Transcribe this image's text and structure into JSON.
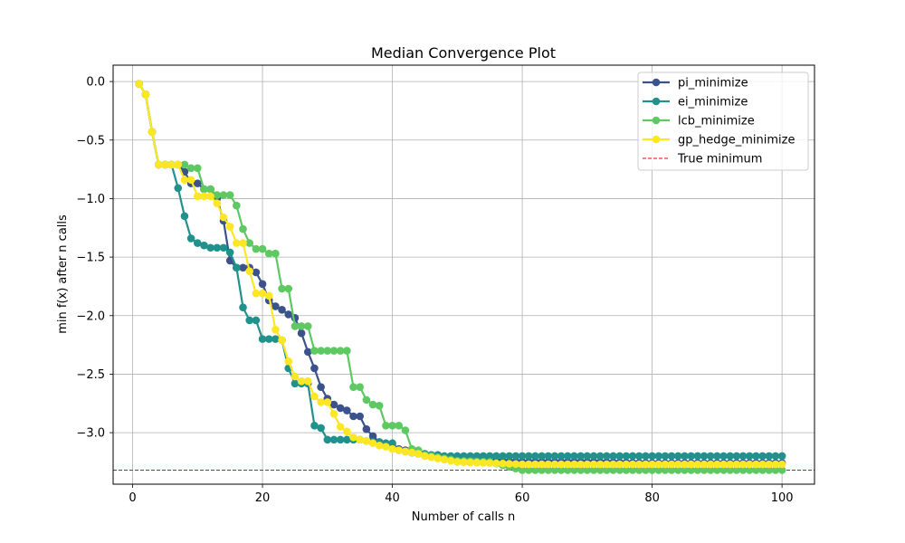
{
  "chart_data": {
    "type": "line",
    "title": "Median Convergence Plot",
    "xlabel": "Number of calls n",
    "ylabel": "min f(x) after n calls",
    "xlim": [
      -3,
      105
    ],
    "ylim": [
      -3.44,
      0.14
    ],
    "x_ticks": [
      0,
      20,
      40,
      60,
      80,
      100
    ],
    "y_ticks": [
      0.0,
      -0.5,
      -1.0,
      -1.5,
      -2.0,
      -2.5,
      -3.0
    ],
    "x_tick_labels": [
      "0",
      "20",
      "40",
      "60",
      "80",
      "100"
    ],
    "y_tick_labels": [
      "0.0",
      "−0.5",
      "−1.0",
      "−1.5",
      "−2.0",
      "−2.5",
      "−3.0"
    ],
    "grid": true,
    "legend_position": "top-right",
    "true_minimum": {
      "name": "True minimum",
      "value": -3.32,
      "color": "#ff0000",
      "style": "dashed"
    },
    "series": [
      {
        "name": "pi_minimize",
        "color": "#3b528b",
        "points": [
          [
            1,
            -0.02
          ],
          [
            2,
            -0.11
          ],
          [
            3,
            -0.43
          ],
          [
            4,
            -0.71
          ],
          [
            5,
            -0.71
          ],
          [
            6,
            -0.71
          ],
          [
            7,
            -0.71
          ],
          [
            8,
            -0.77
          ],
          [
            9,
            -0.87
          ],
          [
            10,
            -0.87
          ],
          [
            11,
            -0.92
          ],
          [
            12,
            -0.92
          ],
          [
            13,
            -1.0
          ],
          [
            14,
            -1.19
          ],
          [
            15,
            -1.53
          ],
          [
            16,
            -1.59
          ],
          [
            17,
            -1.59
          ],
          [
            18,
            -1.59
          ],
          [
            19,
            -1.63
          ],
          [
            20,
            -1.73
          ],
          [
            21,
            -1.87
          ],
          [
            22,
            -1.92
          ],
          [
            23,
            -1.95
          ],
          [
            24,
            -1.99
          ],
          [
            25,
            -2.02
          ],
          [
            26,
            -2.15
          ],
          [
            27,
            -2.31
          ],
          [
            28,
            -2.45
          ],
          [
            29,
            -2.61
          ],
          [
            30,
            -2.71
          ],
          [
            31,
            -2.76
          ],
          [
            32,
            -2.79
          ],
          [
            33,
            -2.81
          ],
          [
            34,
            -2.86
          ],
          [
            35,
            -2.86
          ],
          [
            36,
            -2.97
          ],
          [
            37,
            -3.03
          ],
          [
            38,
            -3.08
          ],
          [
            39,
            -3.1
          ],
          [
            40,
            -3.11
          ],
          [
            41,
            -3.14
          ],
          [
            42,
            -3.15
          ],
          [
            43,
            -3.17
          ],
          [
            44,
            -3.18
          ],
          [
            45,
            -3.19
          ],
          [
            46,
            -3.2
          ],
          [
            47,
            -3.21
          ],
          [
            48,
            -3.22
          ],
          [
            49,
            -3.23
          ],
          [
            50,
            -3.23
          ],
          [
            52,
            -3.24
          ],
          [
            55,
            -3.24
          ],
          [
            60,
            -3.25
          ],
          [
            70,
            -3.25
          ],
          [
            80,
            -3.26
          ],
          [
            90,
            -3.26
          ],
          [
            100,
            -3.26
          ]
        ]
      },
      {
        "name": "ei_minimize",
        "color": "#21918c",
        "points": [
          [
            1,
            -0.02
          ],
          [
            2,
            -0.11
          ],
          [
            3,
            -0.43
          ],
          [
            4,
            -0.71
          ],
          [
            5,
            -0.71
          ],
          [
            6,
            -0.71
          ],
          [
            7,
            -0.91
          ],
          [
            8,
            -1.15
          ],
          [
            9,
            -1.34
          ],
          [
            10,
            -1.38
          ],
          [
            11,
            -1.4
          ],
          [
            12,
            -1.42
          ],
          [
            13,
            -1.42
          ],
          [
            14,
            -1.42
          ],
          [
            15,
            -1.46
          ],
          [
            16,
            -1.59
          ],
          [
            17,
            -1.93
          ],
          [
            18,
            -2.04
          ],
          [
            19,
            -2.04
          ],
          [
            20,
            -2.2
          ],
          [
            21,
            -2.2
          ],
          [
            22,
            -2.2
          ],
          [
            23,
            -2.21
          ],
          [
            24,
            -2.45
          ],
          [
            25,
            -2.58
          ],
          [
            26,
            -2.58
          ],
          [
            27,
            -2.58
          ],
          [
            28,
            -2.94
          ],
          [
            29,
            -2.96
          ],
          [
            30,
            -3.06
          ],
          [
            31,
            -3.06
          ],
          [
            32,
            -3.06
          ],
          [
            33,
            -3.06
          ],
          [
            34,
            -3.06
          ],
          [
            35,
            -3.06
          ],
          [
            36,
            -3.07
          ],
          [
            37,
            -3.08
          ],
          [
            38,
            -3.08
          ],
          [
            39,
            -3.09
          ],
          [
            40,
            -3.09
          ],
          [
            41,
            -3.15
          ],
          [
            42,
            -3.16
          ],
          [
            43,
            -3.17
          ],
          [
            44,
            -3.18
          ],
          [
            45,
            -3.18
          ],
          [
            46,
            -3.19
          ],
          [
            47,
            -3.19
          ],
          [
            48,
            -3.2
          ],
          [
            50,
            -3.2
          ],
          [
            60,
            -3.2
          ],
          [
            70,
            -3.2
          ],
          [
            80,
            -3.2
          ],
          [
            90,
            -3.2
          ],
          [
            100,
            -3.2
          ]
        ]
      },
      {
        "name": "lcb_minimize",
        "color": "#5ec962",
        "points": [
          [
            1,
            -0.02
          ],
          [
            2,
            -0.11
          ],
          [
            3,
            -0.43
          ],
          [
            4,
            -0.71
          ],
          [
            5,
            -0.71
          ],
          [
            6,
            -0.71
          ],
          [
            7,
            -0.71
          ],
          [
            8,
            -0.71
          ],
          [
            9,
            -0.74
          ],
          [
            10,
            -0.74
          ],
          [
            11,
            -0.92
          ],
          [
            12,
            -0.92
          ],
          [
            13,
            -0.97
          ],
          [
            14,
            -0.97
          ],
          [
            15,
            -0.97
          ],
          [
            16,
            -1.06
          ],
          [
            17,
            -1.26
          ],
          [
            18,
            -1.38
          ],
          [
            19,
            -1.43
          ],
          [
            20,
            -1.43
          ],
          [
            21,
            -1.47
          ],
          [
            22,
            -1.47
          ],
          [
            23,
            -1.77
          ],
          [
            24,
            -1.77
          ],
          [
            25,
            -2.09
          ],
          [
            26,
            -2.09
          ],
          [
            27,
            -2.09
          ],
          [
            28,
            -2.3
          ],
          [
            29,
            -2.3
          ],
          [
            30,
            -2.3
          ],
          [
            31,
            -2.3
          ],
          [
            32,
            -2.3
          ],
          [
            33,
            -2.3
          ],
          [
            34,
            -2.61
          ],
          [
            35,
            -2.61
          ],
          [
            36,
            -2.72
          ],
          [
            37,
            -2.76
          ],
          [
            38,
            -2.77
          ],
          [
            39,
            -2.94
          ],
          [
            40,
            -2.94
          ],
          [
            41,
            -2.94
          ],
          [
            42,
            -2.98
          ],
          [
            43,
            -3.14
          ],
          [
            44,
            -3.15
          ],
          [
            45,
            -3.19
          ],
          [
            46,
            -3.2
          ],
          [
            47,
            -3.21
          ],
          [
            48,
            -3.22
          ],
          [
            49,
            -3.23
          ],
          [
            50,
            -3.24
          ],
          [
            55,
            -3.25
          ],
          [
            60,
            -3.32
          ],
          [
            70,
            -3.32
          ],
          [
            80,
            -3.32
          ],
          [
            90,
            -3.32
          ],
          [
            100,
            -3.32
          ]
        ]
      },
      {
        "name": "gp_hedge_minimize",
        "color": "#fde725",
        "points": [
          [
            1,
            -0.02
          ],
          [
            2,
            -0.11
          ],
          [
            3,
            -0.43
          ],
          [
            4,
            -0.71
          ],
          [
            5,
            -0.71
          ],
          [
            6,
            -0.71
          ],
          [
            7,
            -0.71
          ],
          [
            8,
            -0.84
          ],
          [
            9,
            -0.84
          ],
          [
            10,
            -0.98
          ],
          [
            11,
            -0.98
          ],
          [
            12,
            -0.98
          ],
          [
            13,
            -1.04
          ],
          [
            14,
            -1.16
          ],
          [
            15,
            -1.24
          ],
          [
            16,
            -1.38
          ],
          [
            17,
            -1.38
          ],
          [
            18,
            -1.62
          ],
          [
            19,
            -1.81
          ],
          [
            20,
            -1.81
          ],
          [
            21,
            -1.83
          ],
          [
            22,
            -2.12
          ],
          [
            23,
            -2.21
          ],
          [
            24,
            -2.39
          ],
          [
            25,
            -2.52
          ],
          [
            26,
            -2.56
          ],
          [
            27,
            -2.56
          ],
          [
            28,
            -2.69
          ],
          [
            29,
            -2.74
          ],
          [
            30,
            -2.74
          ],
          [
            31,
            -2.84
          ],
          [
            32,
            -2.95
          ],
          [
            33,
            -2.99
          ],
          [
            34,
            -3.04
          ],
          [
            35,
            -3.06
          ],
          [
            36,
            -3.07
          ],
          [
            37,
            -3.09
          ],
          [
            38,
            -3.11
          ],
          [
            39,
            -3.12
          ],
          [
            40,
            -3.14
          ],
          [
            41,
            -3.15
          ],
          [
            42,
            -3.16
          ],
          [
            43,
            -3.17
          ],
          [
            44,
            -3.18
          ],
          [
            45,
            -3.2
          ],
          [
            46,
            -3.21
          ],
          [
            47,
            -3.22
          ],
          [
            48,
            -3.23
          ],
          [
            49,
            -3.24
          ],
          [
            50,
            -3.25
          ],
          [
            55,
            -3.26
          ],
          [
            60,
            -3.27
          ],
          [
            70,
            -3.27
          ],
          [
            80,
            -3.27
          ],
          [
            90,
            -3.27
          ],
          [
            100,
            -3.27
          ]
        ]
      }
    ]
  }
}
